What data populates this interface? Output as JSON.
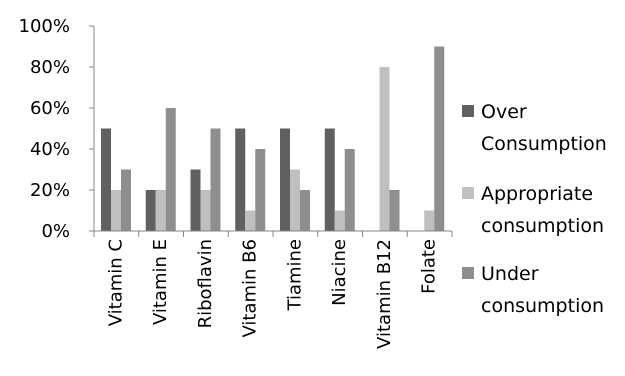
{
  "chart_data": {
    "type": "bar",
    "categories": [
      "Vitamin C",
      "Vitamin E",
      "Riboflavin",
      "Vitamin B6",
      "Tiamine",
      "Niacine",
      "Vitamin B12",
      "Folate"
    ],
    "series": [
      {
        "name": "Over Consumption",
        "values": [
          50,
          20,
          30,
          50,
          50,
          50,
          0,
          0
        ],
        "color": "#606060"
      },
      {
        "name": "Appropriate consumption",
        "values": [
          20,
          20,
          20,
          10,
          30,
          10,
          80,
          10
        ],
        "color": "#bfbfbf"
      },
      {
        "name": "Under consumption",
        "values": [
          30,
          60,
          50,
          40,
          20,
          40,
          20,
          90
        ],
        "color": "#8e8e8e"
      }
    ],
    "yticks": [
      "0%",
      "20%",
      "40%",
      "60%",
      "80%",
      "100%"
    ],
    "ylim": [
      0,
      100
    ],
    "title": "",
    "xlabel": "",
    "ylabel": "",
    "grid": false,
    "legend_position": "right"
  }
}
